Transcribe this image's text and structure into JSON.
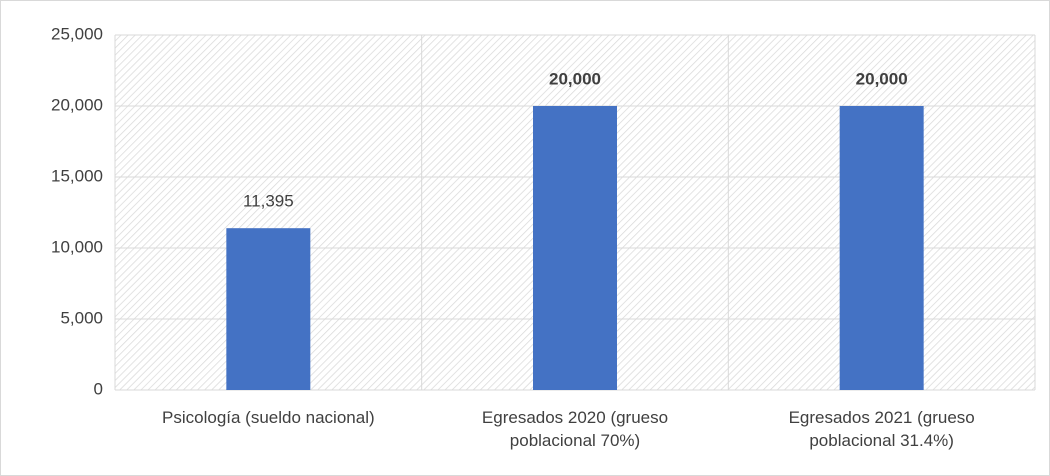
{
  "chart_data": {
    "type": "bar",
    "categories": [
      "Psicología (sueldo nacional)",
      "Egresados 2020 (grueso poblacional 70%)",
      "Egresados 2021 (grueso poblacional 31.4%)"
    ],
    "values": [
      11395,
      20000,
      20000
    ],
    "value_labels": [
      "11,395",
      "20,000",
      "20,000"
    ],
    "color": "#4472c4",
    "ylim": [
      0,
      25000
    ],
    "yticks": [
      0,
      {
        "value": 5000,
        "label": "5,000"
      },
      {
        "value": 10000,
        "label": "10,000"
      },
      {
        "value": 15000,
        "label": "15,000"
      },
      {
        "value": 20000,
        "label": "20,000"
      },
      {
        "value": 25000,
        "label": "25,000"
      }
    ],
    "grid": true
  }
}
